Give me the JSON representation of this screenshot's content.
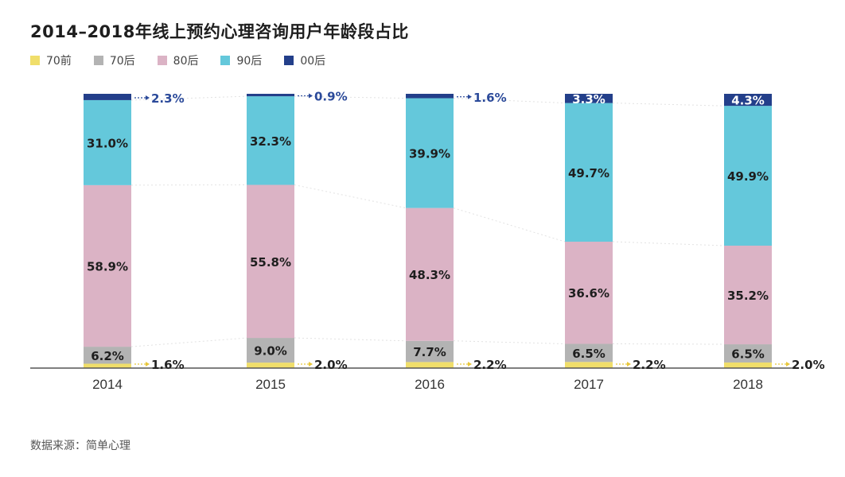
{
  "title": "2014–2018年线上预约心理咨询用户年龄段占比",
  "source": "数据来源：简单心理",
  "chart_data": {
    "type": "bar",
    "stacked": true,
    "categories": [
      "2014",
      "2015",
      "2016",
      "2017",
      "2018"
    ],
    "series": [
      {
        "name": "70前",
        "color": "#f0de6a",
        "values": [
          1.6,
          2.0,
          2.2,
          2.2,
          2.0
        ],
        "labels": [
          "1.6%",
          "2.0%",
          "2.2%",
          "2.2%",
          "2.0%"
        ]
      },
      {
        "name": "70后",
        "color": "#b3b3b3",
        "values": [
          6.2,
          9.0,
          7.7,
          6.5,
          6.5
        ],
        "labels": [
          "6.2%",
          "9.0%",
          "7.7%",
          "6.5%",
          "6.5%"
        ]
      },
      {
        "name": "80后",
        "color": "#dbb3c5",
        "values": [
          58.9,
          55.8,
          48.3,
          36.6,
          35.2
        ],
        "labels": [
          "58.9%",
          "55.8%",
          "48.3%",
          "36.6%",
          "35.2%"
        ]
      },
      {
        "name": "90后",
        "color": "#64c8db",
        "values": [
          31.0,
          32.3,
          39.9,
          49.7,
          49.9
        ],
        "labels": [
          "31.0%",
          "32.3%",
          "39.9%",
          "49.7%",
          "49.9%"
        ]
      },
      {
        "name": "00后",
        "color": "#233f8a",
        "values": [
          2.3,
          0.9,
          1.6,
          3.3,
          4.3
        ],
        "labels": [
          "2.3%",
          "0.9%",
          "1.6%",
          "3.3%",
          "4.3%"
        ]
      }
    ],
    "xlabel": "",
    "ylabel": "",
    "ylim": [
      0,
      100
    ],
    "grid": false,
    "legend_position": "top-left"
  }
}
